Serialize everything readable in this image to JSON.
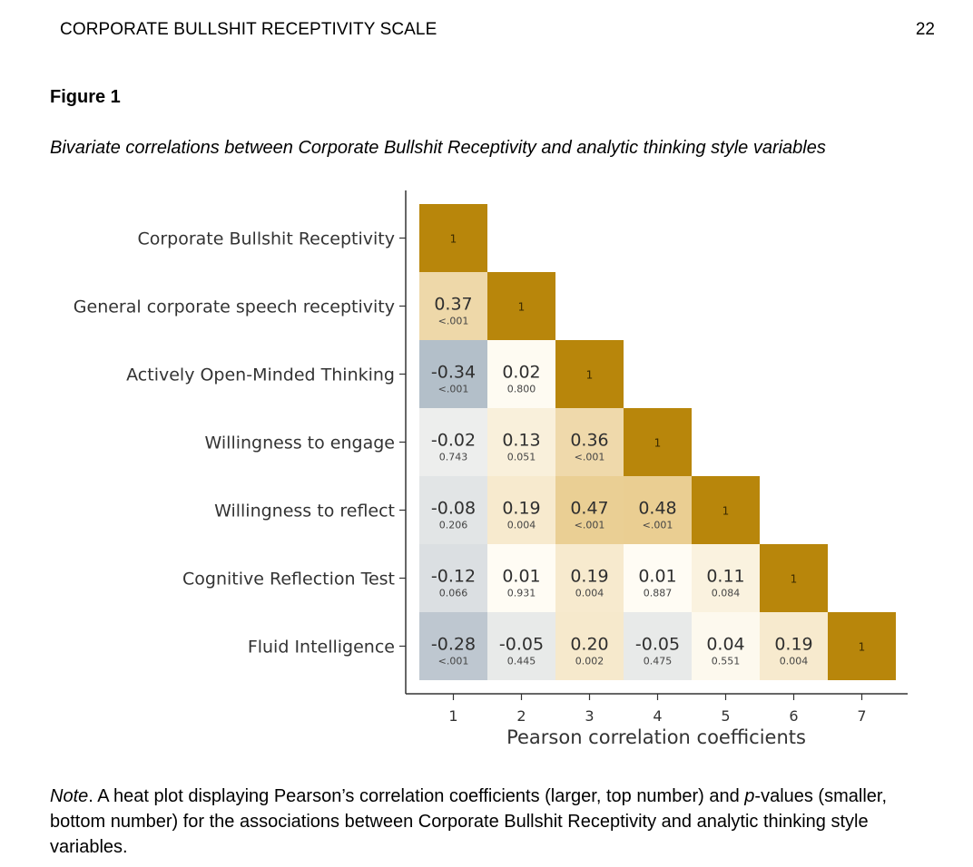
{
  "header": {
    "running_head": "CORPORATE BULLSHIT RECEPTIVITY SCALE",
    "page_number": "22"
  },
  "figure": {
    "label": "Figure 1",
    "title": "Bivariate correlations between Corporate Bullshit Receptivity and analytic thinking style variables"
  },
  "note": {
    "lead": "Note",
    "text_1": ". A heat plot displaying Pearson’s correlation coefficients (larger, top number) and ",
    "p_italic": "p",
    "text_2": "-values (smaller, bottom number) for the associations between Corporate Bullshit Receptivity and analytic thinking style variables."
  },
  "chart_data": {
    "type": "heatmap",
    "xlabel": "Pearson correlation coefficients",
    "x_ticks": [
      "1",
      "2",
      "3",
      "4",
      "5",
      "6",
      "7"
    ],
    "row_labels": [
      "Corporate Bullshit Receptivity",
      "General corporate speech receptivity",
      "Actively Open-Minded Thinking",
      "Willingness to engage",
      "Willingness to reflect",
      "Cognitive Reflection Test",
      "Fluid Intelligence"
    ],
    "colors": {
      "diagonal": "#B8860B",
      "positive": "#D9A945",
      "negative": "#8A9DB0",
      "neutral": "#FFFDF6"
    },
    "cells": [
      [
        {
          "r": "1",
          "p": ""
        }
      ],
      [
        {
          "r": "0.37",
          "p": "<.001"
        },
        {
          "r": "1",
          "p": ""
        }
      ],
      [
        {
          "r": "-0.34",
          "p": "<.001"
        },
        {
          "r": "0.02",
          "p": "0.800"
        },
        {
          "r": "1",
          "p": ""
        }
      ],
      [
        {
          "r": "-0.02",
          "p": "0.743"
        },
        {
          "r": "0.13",
          "p": "0.051"
        },
        {
          "r": "0.36",
          "p": "<.001"
        },
        {
          "r": "1",
          "p": ""
        }
      ],
      [
        {
          "r": "-0.08",
          "p": "0.206"
        },
        {
          "r": "0.19",
          "p": "0.004"
        },
        {
          "r": "0.47",
          "p": "<.001"
        },
        {
          "r": "0.48",
          "p": "<.001"
        },
        {
          "r": "1",
          "p": ""
        }
      ],
      [
        {
          "r": "-0.12",
          "p": "0.066"
        },
        {
          "r": "0.01",
          "p": "0.931"
        },
        {
          "r": "0.19",
          "p": "0.004"
        },
        {
          "r": "0.01",
          "p": "0.887"
        },
        {
          "r": "0.11",
          "p": "0.084"
        },
        {
          "r": "1",
          "p": ""
        }
      ],
      [
        {
          "r": "-0.28",
          "p": "<.001"
        },
        {
          "r": "-0.05",
          "p": "0.445"
        },
        {
          "r": "0.20",
          "p": "0.002"
        },
        {
          "r": "-0.05",
          "p": "0.475"
        },
        {
          "r": "0.04",
          "p": "0.551"
        },
        {
          "r": "0.19",
          "p": "0.004"
        },
        {
          "r": "1",
          "p": ""
        }
      ]
    ]
  }
}
